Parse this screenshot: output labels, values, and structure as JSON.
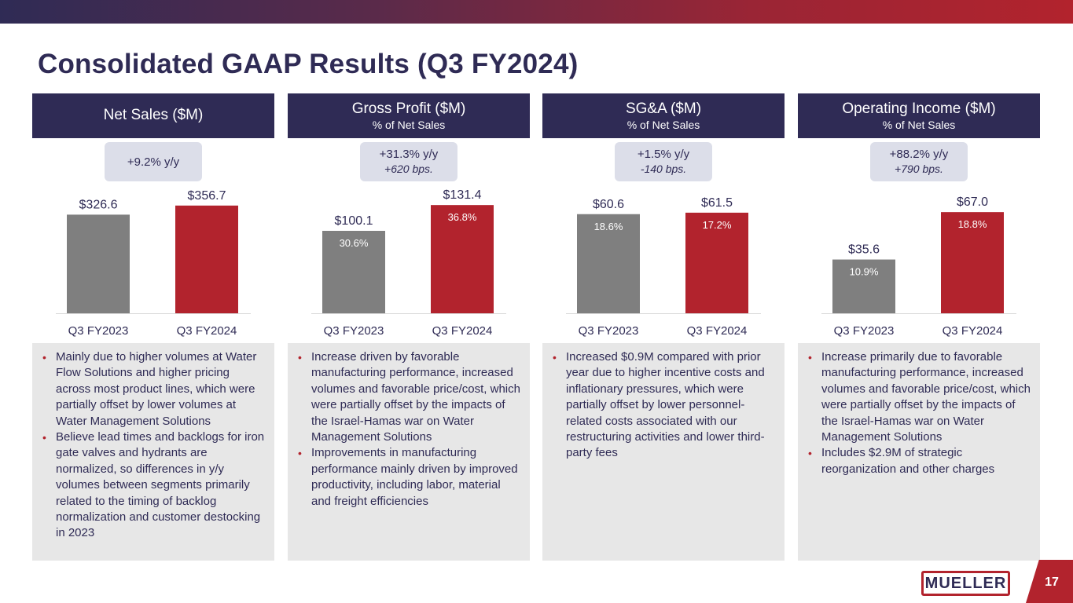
{
  "page": {
    "title": "Consolidated GAAP Results (Q3 FY2024)",
    "page_number": "17",
    "logo_text": "MUELLER"
  },
  "colors": {
    "navy": "#2f2b55",
    "red": "#b2232d",
    "gray_bar": "#7f7f7f",
    "badge_bg": "#dcdee9",
    "bullet_bg": "#e7e7e7"
  },
  "panels": [
    {
      "title": "Net Sales ($M)",
      "subtitle": "",
      "badge_main": "+9.2% y/y",
      "badge_sub": "",
      "bullets": [
        "Mainly due to higher volumes at Water Flow Solutions and higher pricing across most product lines, which were partially offset by lower volumes at Water Management Solutions",
        "Believe lead times and backlogs for iron gate valves and hydrants are normalized, so differences in y/y volumes between segments primarily related to the timing of backlog normalization and customer destocking in 2023"
      ]
    },
    {
      "title": "Gross Profit ($M)",
      "subtitle": "% of Net Sales",
      "badge_main": "+31.3% y/y",
      "badge_sub": "+620 bps.",
      "bullets": [
        "Increase driven by favorable manufacturing performance, increased volumes and favorable price/cost, which were partially offset by the impacts of the Israel-Hamas war on Water Management Solutions",
        "Improvements in manufacturing performance mainly driven by improved productivity, including labor, material and freight efficiencies"
      ]
    },
    {
      "title": "SG&A ($M)",
      "subtitle": "% of Net Sales",
      "badge_main": "+1.5% y/y",
      "badge_sub": "-140 bps.",
      "bullets": [
        "Increased $0.9M compared with prior year due to higher incentive costs and inflationary pressures, which were partially offset by lower personnel-related costs associated with our restructuring activities and lower third-party fees"
      ]
    },
    {
      "title": "Operating Income ($M)",
      "subtitle": "% of Net Sales",
      "badge_main": "+88.2% y/y",
      "badge_sub": "+790 bps.",
      "bullets": [
        "Increase primarily due to favorable manufacturing performance, increased volumes and favorable price/cost, which were partially offset by the impacts of the Israel-Hamas war on Water Management Solutions",
        "Includes $2.9M of strategic reorganization and other charges"
      ]
    }
  ],
  "chart_data": [
    {
      "type": "bar",
      "title": "Net Sales ($M)",
      "categories": [
        "Q3 FY2023",
        "Q3 FY2024"
      ],
      "values": [
        326.6,
        356.7
      ],
      "data_labels": [
        "$326.6",
        "$356.7"
      ],
      "pct_labels": [],
      "ylim": [
        0,
        390
      ]
    },
    {
      "type": "bar",
      "title": "Gross Profit ($M)",
      "categories": [
        "Q3 FY2023",
        "Q3 FY2024"
      ],
      "values": [
        100.1,
        131.4
      ],
      "data_labels": [
        "$100.1",
        "$131.4"
      ],
      "pct_labels": [
        "30.6%",
        "36.8%"
      ],
      "ylim": [
        0,
        143
      ]
    },
    {
      "type": "bar",
      "title": "SG&A ($M)",
      "categories": [
        "Q3 FY2023",
        "Q3 FY2024"
      ],
      "values": [
        60.6,
        61.5
      ],
      "data_labels": [
        "$60.6",
        "$61.5"
      ],
      "pct_labels": [
        "18.6%",
        "17.2%"
      ],
      "ylim": [
        0,
        72
      ]
    },
    {
      "type": "bar",
      "title": "Operating Income ($M)",
      "categories": [
        "Q3 FY2023",
        "Q3 FY2024"
      ],
      "values": [
        35.6,
        67.0
      ],
      "data_labels": [
        "$35.6",
        "$67.0"
      ],
      "pct_labels": [
        "10.9%",
        "18.8%"
      ],
      "ylim": [
        0,
        78
      ]
    }
  ]
}
